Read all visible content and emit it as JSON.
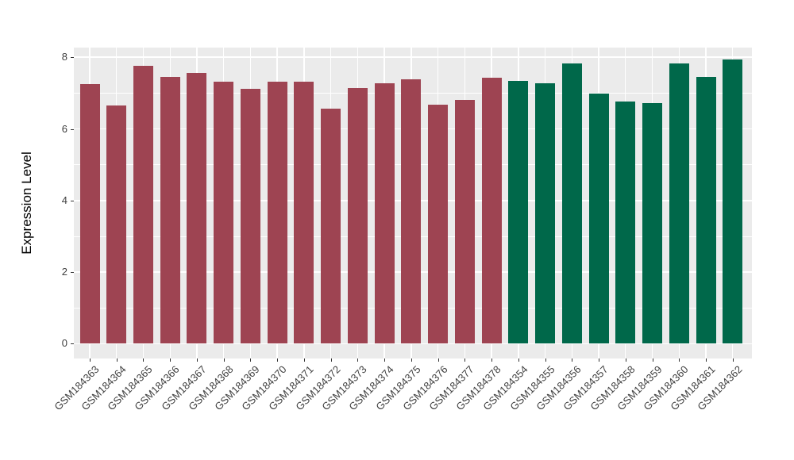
{
  "chart_data": {
    "type": "bar",
    "title": "",
    "xlabel": "",
    "ylabel": "Expression Level",
    "ylim": [
      0,
      8.3
    ],
    "yticks_major": [
      0,
      2,
      4,
      6,
      8
    ],
    "yticks_minor": [
      1,
      3,
      5,
      7
    ],
    "legend_position": "none",
    "grid": "major and minor white gridlines on gray panel",
    "categories": [
      "GSM184363",
      "GSM184364",
      "GSM184365",
      "GSM184366",
      "GSM184367",
      "GSM184368",
      "GSM184369",
      "GSM184370",
      "GSM184371",
      "GSM184372",
      "GSM184373",
      "GSM184374",
      "GSM184375",
      "GSM184376",
      "GSM184377",
      "GSM184378",
      "GSM184354",
      "GSM184355",
      "GSM184356",
      "GSM184357",
      "GSM184358",
      "GSM184359",
      "GSM184360",
      "GSM184361",
      "GSM184362"
    ],
    "values": [
      7.25,
      6.65,
      7.76,
      7.44,
      7.56,
      7.32,
      7.12,
      7.32,
      7.31,
      6.56,
      7.15,
      7.27,
      7.38,
      6.67,
      6.8,
      7.42,
      7.33,
      7.27,
      7.82,
      6.98,
      6.76,
      6.73,
      7.82,
      7.46,
      7.93
    ],
    "bar_groups": [
      "maroon",
      "maroon",
      "maroon",
      "maroon",
      "maroon",
      "maroon",
      "maroon",
      "maroon",
      "maroon",
      "maroon",
      "maroon",
      "maroon",
      "maroon",
      "maroon",
      "maroon",
      "maroon",
      "green",
      "green",
      "green",
      "green",
      "green",
      "green",
      "green",
      "green",
      "green"
    ],
    "colors": {
      "maroon": "#9E4452",
      "green": "#00684A",
      "panel_bg": "#EBEBEB",
      "grid": "#FFFFFF",
      "axis_text": "#404040",
      "axis_title": "#000000"
    }
  }
}
